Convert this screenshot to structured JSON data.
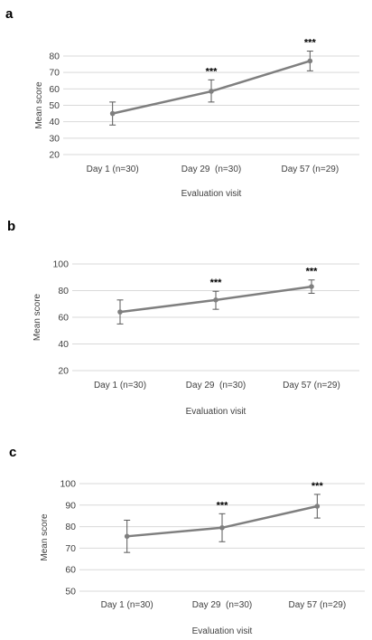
{
  "chart_data": [
    {
      "panel": "a",
      "type": "line",
      "categories": [
        "Day 1 (n=30)",
        "Day 29  (n=30)",
        "Day 57 (n=29)"
      ],
      "series": [
        {
          "values": [
            45,
            58.5,
            77
          ],
          "err_low": [
            38,
            52,
            71
          ],
          "err_high": [
            52,
            65.5,
            83
          ]
        }
      ],
      "annotations": [
        "",
        "***",
        "***"
      ],
      "xlabel": "Evaluation visit",
      "ylabel": "Mean score",
      "ylim": [
        20,
        80
      ],
      "yticks": [
        20,
        30,
        40,
        50,
        60,
        70,
        80
      ],
      "grid": true,
      "colors": {
        "line": "#7f7f7f",
        "grid": "#d9d9d9"
      }
    },
    {
      "panel": "b",
      "type": "line",
      "categories": [
        "Day 1 (n=30)",
        "Day 29  (n=30)",
        "Day 57 (n=29)"
      ],
      "series": [
        {
          "values": [
            64,
            73,
            83
          ],
          "err_low": [
            55,
            66,
            78
          ],
          "err_high": [
            73,
            79.5,
            88
          ]
        }
      ],
      "annotations": [
        "",
        "***",
        "***"
      ],
      "xlabel": "Evaluation visit",
      "ylabel": "Mean score",
      "ylim": [
        20,
        100
      ],
      "yticks": [
        20,
        40,
        60,
        80,
        100
      ],
      "grid": true,
      "colors": {
        "line": "#7f7f7f",
        "grid": "#d9d9d9"
      }
    },
    {
      "panel": "c",
      "type": "line",
      "categories": [
        "Day 1 (n=30)",
        "Day 29  (n=30)",
        "Day 57 (n=29)"
      ],
      "series": [
        {
          "values": [
            75.5,
            79.5,
            89.5
          ],
          "err_low": [
            68,
            73,
            84
          ],
          "err_high": [
            83,
            86,
            95
          ]
        }
      ],
      "annotations": [
        "",
        "***",
        "***"
      ],
      "xlabel": "Evaluation visit",
      "ylabel": "Mean score",
      "ylim": [
        50,
        100
      ],
      "yticks": [
        50,
        60,
        70,
        80,
        90,
        100
      ],
      "grid": true,
      "colors": {
        "line": "#7f7f7f",
        "grid": "#d9d9d9"
      }
    }
  ]
}
